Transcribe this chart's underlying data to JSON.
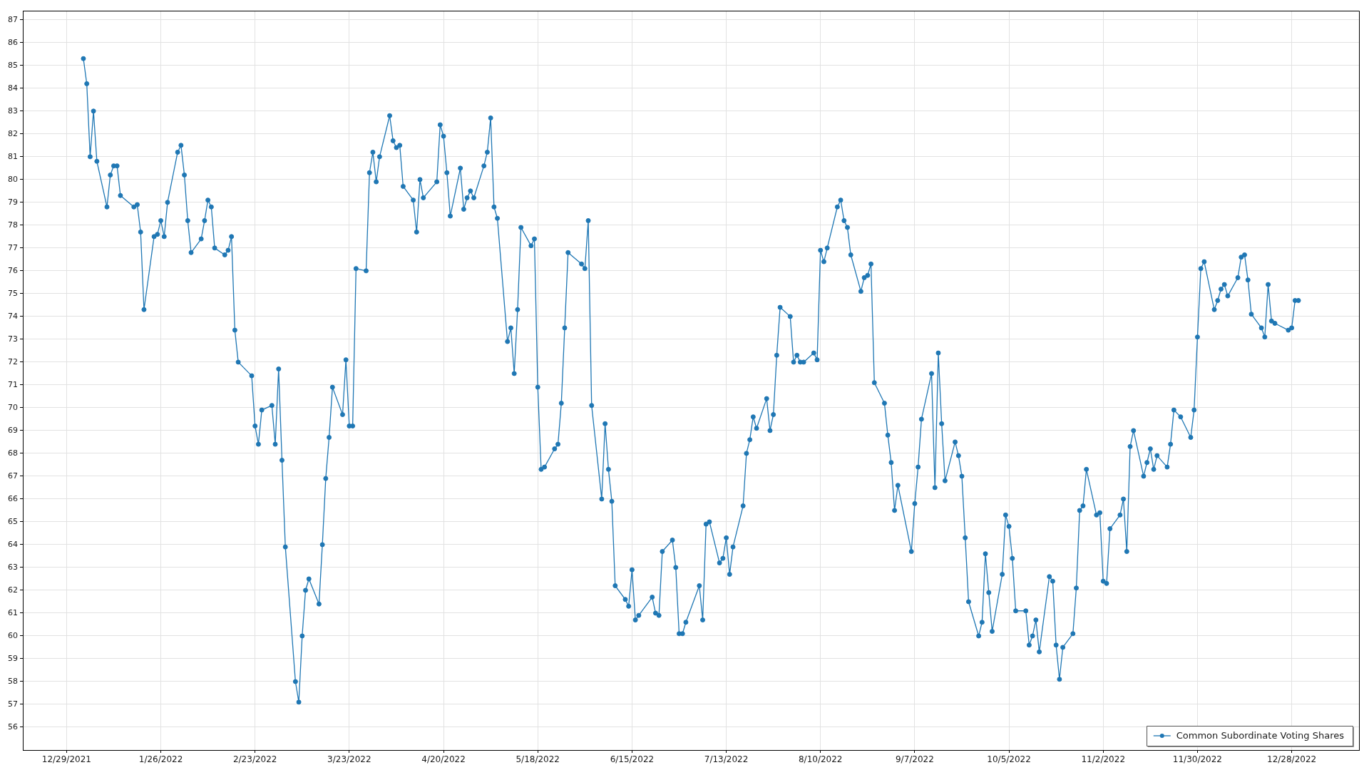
{
  "chart_data": {
    "type": "line",
    "x": [
      "2022-01-03",
      "2022-01-04",
      "2022-01-05",
      "2022-01-06",
      "2022-01-07",
      "2022-01-10",
      "2022-01-11",
      "2022-01-12",
      "2022-01-13",
      "2022-01-14",
      "2022-01-18",
      "2022-01-19",
      "2022-01-20",
      "2022-01-21",
      "2022-01-24",
      "2022-01-25",
      "2022-01-26",
      "2022-01-27",
      "2022-01-28",
      "2022-01-31",
      "2022-02-01",
      "2022-02-02",
      "2022-02-03",
      "2022-02-04",
      "2022-02-07",
      "2022-02-08",
      "2022-02-09",
      "2022-02-10",
      "2022-02-11",
      "2022-02-14",
      "2022-02-15",
      "2022-02-16",
      "2022-02-17",
      "2022-02-18",
      "2022-02-22",
      "2022-02-23",
      "2022-02-24",
      "2022-02-25",
      "2022-02-28",
      "2022-03-01",
      "2022-03-02",
      "2022-03-03",
      "2022-03-04",
      "2022-03-07",
      "2022-03-08",
      "2022-03-09",
      "2022-03-10",
      "2022-03-11",
      "2022-03-14",
      "2022-03-15",
      "2022-03-16",
      "2022-03-17",
      "2022-03-18",
      "2022-03-21",
      "2022-03-22",
      "2022-03-23",
      "2022-03-24",
      "2022-03-25",
      "2022-03-28",
      "2022-03-29",
      "2022-03-30",
      "2022-03-31",
      "2022-04-01",
      "2022-04-04",
      "2022-04-05",
      "2022-04-06",
      "2022-04-07",
      "2022-04-08",
      "2022-04-11",
      "2022-04-12",
      "2022-04-13",
      "2022-04-14",
      "2022-04-18",
      "2022-04-19",
      "2022-04-20",
      "2022-04-21",
      "2022-04-22",
      "2022-04-25",
      "2022-04-26",
      "2022-04-27",
      "2022-04-28",
      "2022-04-29",
      "2022-05-02",
      "2022-05-03",
      "2022-05-04",
      "2022-05-05",
      "2022-05-06",
      "2022-05-09",
      "2022-05-10",
      "2022-05-11",
      "2022-05-12",
      "2022-05-13",
      "2022-05-16",
      "2022-05-17",
      "2022-05-18",
      "2022-05-19",
      "2022-05-20",
      "2022-05-23",
      "2022-05-24",
      "2022-05-25",
      "2022-05-26",
      "2022-05-27",
      "2022-05-31",
      "2022-06-01",
      "2022-06-02",
      "2022-06-03",
      "2022-06-06",
      "2022-06-07",
      "2022-06-08",
      "2022-06-09",
      "2022-06-10",
      "2022-06-13",
      "2022-06-14",
      "2022-06-15",
      "2022-06-16",
      "2022-06-17",
      "2022-06-21",
      "2022-06-22",
      "2022-06-23",
      "2022-06-24",
      "2022-06-27",
      "2022-06-28",
      "2022-06-29",
      "2022-06-30",
      "2022-07-01",
      "2022-07-05",
      "2022-07-06",
      "2022-07-07",
      "2022-07-08",
      "2022-07-11",
      "2022-07-12",
      "2022-07-13",
      "2022-07-14",
      "2022-07-15",
      "2022-07-18",
      "2022-07-19",
      "2022-07-20",
      "2022-07-21",
      "2022-07-22",
      "2022-07-25",
      "2022-07-26",
      "2022-07-27",
      "2022-07-28",
      "2022-07-29",
      "2022-08-01",
      "2022-08-02",
      "2022-08-03",
      "2022-08-04",
      "2022-08-05",
      "2022-08-08",
      "2022-08-09",
      "2022-08-10",
      "2022-08-11",
      "2022-08-12",
      "2022-08-15",
      "2022-08-16",
      "2022-08-17",
      "2022-08-18",
      "2022-08-19",
      "2022-08-22",
      "2022-08-23",
      "2022-08-24",
      "2022-08-25",
      "2022-08-26",
      "2022-08-29",
      "2022-08-30",
      "2022-08-31",
      "2022-09-01",
      "2022-09-02",
      "2022-09-06",
      "2022-09-07",
      "2022-09-08",
      "2022-09-09",
      "2022-09-12",
      "2022-09-13",
      "2022-09-14",
      "2022-09-15",
      "2022-09-16",
      "2022-09-19",
      "2022-09-20",
      "2022-09-21",
      "2022-09-22",
      "2022-09-23",
      "2022-09-26",
      "2022-09-27",
      "2022-09-28",
      "2022-09-29",
      "2022-09-30",
      "2022-10-03",
      "2022-10-04",
      "2022-10-05",
      "2022-10-06",
      "2022-10-07",
      "2022-10-10",
      "2022-10-11",
      "2022-10-12",
      "2022-10-13",
      "2022-10-14",
      "2022-10-17",
      "2022-10-18",
      "2022-10-19",
      "2022-10-20",
      "2022-10-21",
      "2022-10-24",
      "2022-10-25",
      "2022-10-26",
      "2022-10-27",
      "2022-10-28",
      "2022-10-31",
      "2022-11-01",
      "2022-11-02",
      "2022-11-03",
      "2022-11-04",
      "2022-11-07",
      "2022-11-08",
      "2022-11-09",
      "2022-11-10",
      "2022-11-11",
      "2022-11-14",
      "2022-11-15",
      "2022-11-16",
      "2022-11-17",
      "2022-11-18",
      "2022-11-21",
      "2022-11-22",
      "2022-11-23",
      "2022-11-25",
      "2022-11-28",
      "2022-11-29",
      "2022-11-30",
      "2022-12-01",
      "2022-12-02",
      "2022-12-05",
      "2022-12-06",
      "2022-12-07",
      "2022-12-08",
      "2022-12-09",
      "2022-12-12",
      "2022-12-13",
      "2022-12-14",
      "2022-12-15",
      "2022-12-16",
      "2022-12-19",
      "2022-12-20",
      "2022-12-21",
      "2022-12-22",
      "2022-12-23",
      "2022-12-27",
      "2022-12-28",
      "2022-12-29",
      "2022-12-30"
    ],
    "series": [
      {
        "name": "Common Subordinate Voting Shares",
        "color": "#1f77b4",
        "values": [
          85.3,
          84.2,
          81.0,
          83.0,
          80.8,
          78.8,
          80.2,
          80.6,
          80.6,
          79.3,
          78.8,
          78.9,
          77.7,
          74.3,
          77.5,
          77.6,
          78.2,
          77.5,
          79.0,
          81.2,
          81.5,
          80.2,
          78.2,
          76.8,
          77.4,
          78.2,
          79.1,
          78.8,
          77.0,
          76.7,
          76.9,
          77.5,
          73.4,
          72.0,
          71.4,
          69.2,
          68.4,
          69.9,
          70.1,
          68.4,
          71.7,
          67.7,
          63.9,
          58.0,
          57.1,
          60.0,
          62.0,
          62.5,
          61.4,
          64.0,
          66.9,
          68.7,
          70.9,
          69.7,
          72.1,
          69.2,
          69.2,
          76.1,
          76.0,
          80.3,
          81.2,
          79.9,
          81.0,
          82.8,
          81.7,
          81.4,
          81.5,
          79.7,
          79.1,
          77.7,
          80.0,
          79.2,
          79.9,
          82.4,
          81.9,
          80.3,
          78.4,
          80.5,
          78.7,
          79.2,
          79.5,
          79.2,
          80.6,
          81.2,
          82.7,
          78.8,
          78.3,
          72.9,
          73.5,
          71.5,
          74.3,
          77.9,
          77.1,
          77.4,
          70.9,
          67.3,
          67.4,
          68.2,
          68.4,
          70.2,
          73.5,
          76.8,
          76.3,
          76.1,
          78.2,
          70.1,
          66.0,
          69.3,
          67.3,
          65.9,
          62.2,
          61.6,
          61.3,
          62.9,
          60.7,
          60.9,
          61.7,
          61.0,
          60.9,
          63.7,
          64.2,
          63.0,
          60.1,
          60.1,
          60.6,
          62.2,
          60.7,
          64.9,
          65.0,
          63.2,
          63.4,
          64.3,
          62.7,
          63.9,
          65.7,
          68.0,
          68.6,
          69.6,
          69.1,
          70.4,
          69.0,
          69.7,
          72.3,
          74.4,
          74.0,
          72.0,
          72.3,
          72.0,
          72.0,
          72.4,
          72.1,
          76.9,
          76.4,
          77.0,
          78.8,
          79.1,
          78.2,
          77.9,
          76.7,
          75.1,
          75.7,
          75.8,
          76.3,
          71.1,
          70.2,
          68.8,
          67.6,
          65.5,
          66.6,
          63.7,
          65.8,
          67.4,
          69.5,
          71.5,
          66.5,
          72.4,
          69.3,
          66.8,
          68.5,
          67.9,
          67.0,
          64.3,
          61.5,
          60.0,
          60.6,
          63.6,
          61.9,
          60.2,
          62.7,
          65.3,
          64.8,
          63.4,
          61.1,
          61.1,
          59.6,
          60.0,
          60.7,
          59.3,
          62.6,
          62.4,
          59.6,
          58.1,
          59.5,
          60.1,
          62.1,
          65.5,
          65.7,
          67.3,
          65.3,
          65.4,
          62.4,
          62.3,
          64.7,
          65.3,
          66.0,
          63.7,
          68.3,
          69.0,
          67.0,
          67.6,
          68.2,
          67.3,
          67.9,
          67.4,
          68.4,
          69.9,
          69.6,
          68.7,
          69.9,
          73.1,
          76.1,
          76.4,
          74.3,
          74.7,
          75.2,
          75.4,
          74.9,
          75.7,
          76.6,
          76.7,
          75.6,
          74.1,
          73.5,
          73.1,
          75.4,
          73.8,
          73.7,
          73.4,
          73.5,
          74.7,
          74.7
        ]
      }
    ],
    "xlim": [
      "2021-12-16",
      "2023-01-17"
    ],
    "xticks": [
      {
        "value": "2021-12-29",
        "label": "12/29/2021"
      },
      {
        "value": "2022-01-26",
        "label": "1/26/2022"
      },
      {
        "value": "2022-02-23",
        "label": "2/23/2022"
      },
      {
        "value": "2022-03-23",
        "label": "3/23/2022"
      },
      {
        "value": "2022-04-20",
        "label": "4/20/2022"
      },
      {
        "value": "2022-05-18",
        "label": "5/18/2022"
      },
      {
        "value": "2022-06-15",
        "label": "6/15/2022"
      },
      {
        "value": "2022-07-13",
        "label": "7/13/2022"
      },
      {
        "value": "2022-08-10",
        "label": "8/10/2022"
      },
      {
        "value": "2022-09-07",
        "label": "9/7/2022"
      },
      {
        "value": "2022-10-05",
        "label": "10/5/2022"
      },
      {
        "value": "2022-11-02",
        "label": "11/2/2022"
      },
      {
        "value": "2022-11-30",
        "label": "11/30/2022"
      },
      {
        "value": "2022-12-28",
        "label": "12/28/2022"
      }
    ],
    "ylim": [
      55,
      87.4
    ],
    "yticks": [
      56,
      57,
      58,
      59,
      60,
      61,
      62,
      63,
      64,
      65,
      66,
      67,
      68,
      69,
      70,
      71,
      72,
      73,
      74,
      75,
      76,
      77,
      78,
      79,
      80,
      81,
      82,
      83,
      84,
      85,
      86,
      87
    ],
    "grid": true,
    "legend": "bottom right",
    "marker": "circle",
    "line_style": "solid"
  }
}
